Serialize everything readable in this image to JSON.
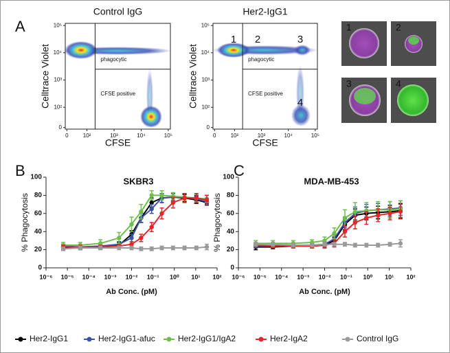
{
  "panel_labels": [
    "A",
    "B",
    "C"
  ],
  "flow_plots": [
    {
      "title": "Control IgG",
      "xlabel": "CFSE",
      "ylabel": "Celltrace Violet",
      "gate_labels": [
        "phagocytic",
        "CFSE positive"
      ],
      "xlim": [
        0,
        120000
      ],
      "ylim": [
        0,
        120000
      ],
      "gate_x": 200,
      "gate_y": 2500,
      "xticks": [
        0,
        {
          "value": 100,
          "label": "10²"
        },
        {
          "value": 1000,
          "label": "10³"
        },
        {
          "value": 10000,
          "label": "10⁴"
        },
        {
          "value": 100000,
          "label": "10⁵"
        }
      ],
      "yticks": [
        0,
        {
          "value": 100,
          "label": "10²"
        },
        {
          "value": 1000,
          "label": "10³"
        },
        {
          "value": 10000,
          "label": "10⁴"
        },
        {
          "value": 100000,
          "label": "10⁵"
        }
      ]
    },
    {
      "title": "Her2-IgG1",
      "xlabel": "CFSE",
      "ylabel": "Celltrace Violet",
      "gate_labels": [
        "phagocytic",
        "CFSE positive"
      ],
      "population_labels": [
        "1",
        "2",
        "3",
        "4"
      ],
      "xlim": [
        0,
        120000
      ],
      "ylim": [
        0,
        120000
      ],
      "gate_x": 200,
      "gate_y": 2500,
      "xticks": [
        0,
        {
          "value": 100,
          "label": "10²"
        },
        {
          "value": 1000,
          "label": "10³"
        },
        {
          "value": 10000,
          "label": "10⁴"
        },
        {
          "value": 100000,
          "label": "10⁵"
        }
      ],
      "yticks": [
        0,
        {
          "value": 100,
          "label": "10²"
        },
        {
          "value": 1000,
          "label": "10³"
        },
        {
          "value": 10000,
          "label": "10⁴"
        },
        {
          "value": 100000,
          "label": "10⁵"
        }
      ]
    }
  ],
  "image_labels": [
    "1",
    "2",
    "3",
    "4"
  ],
  "chart_data": [
    {
      "type": "line",
      "title": "SKBR3",
      "xlabel": "Ab Conc. (pM)",
      "ylabel": "% Phagocytosis",
      "xscale": "log",
      "xlim": [
        1e-06,
        100
      ],
      "ylim": [
        0,
        100
      ],
      "xticks": [
        {
          "value": 1e-06,
          "label": "10⁻⁶"
        },
        {
          "value": 1e-05,
          "label": "10⁻⁵"
        },
        {
          "value": 0.0001,
          "label": "10⁻⁴"
        },
        {
          "value": 0.001,
          "label": "10⁻³"
        },
        {
          "value": 0.01,
          "label": "10⁻²"
        },
        {
          "value": 0.1,
          "label": "10⁻¹"
        },
        {
          "value": 1,
          "label": "10⁰"
        },
        {
          "value": 10,
          "label": "10¹"
        },
        {
          "value": 100,
          "label": "10²"
        }
      ],
      "yticks": [
        0,
        20,
        40,
        60,
        80,
        100
      ],
      "x": [
        6.4e-06,
        4e-05,
        0.00035,
        0.0026,
        0.01,
        0.028,
        0.087,
        0.26,
        0.87,
        3,
        10.7,
        33
      ],
      "series": [
        {
          "name": "Her2-IgG1",
          "color": "#000000",
          "values": [
            22,
            22,
            23,
            25,
            37,
            55,
            72,
            77,
            78,
            77,
            75,
            72
          ],
          "errors": [
            2,
            2,
            2,
            3,
            4,
            5,
            5,
            5,
            4,
            4,
            4,
            3
          ]
        },
        {
          "name": "Her2-IgG1-afuc",
          "color": "#3b53a4",
          "values": [
            24,
            23,
            24,
            26,
            33,
            55,
            65,
            77,
            78,
            78,
            76,
            73
          ],
          "errors": [
            2,
            2,
            2,
            3,
            4,
            5,
            5,
            5,
            4,
            4,
            4,
            4
          ]
        },
        {
          "name": "Her2-IgG1/IgA2",
          "color": "#6cbf4a",
          "values": [
            25,
            25,
            27,
            33,
            48,
            62,
            80,
            80,
            79,
            78,
            77,
            76
          ],
          "errors": [
            3,
            3,
            4,
            6,
            8,
            8,
            5,
            5,
            4,
            4,
            4,
            4
          ]
        },
        {
          "name": "Her2-IgA2",
          "color": "#e2262a",
          "values": [
            23,
            23,
            23,
            24,
            26,
            33,
            45,
            60,
            72,
            77,
            77,
            75
          ],
          "errors": [
            2,
            2,
            2,
            2,
            3,
            4,
            5,
            6,
            6,
            5,
            5,
            5
          ]
        },
        {
          "name": "Control IgG",
          "color": "#9a9a9a",
          "values": [
            21,
            22,
            22,
            22,
            22,
            21,
            21,
            22,
            22,
            22,
            22,
            23
          ],
          "errors": [
            2,
            2,
            2,
            2,
            2,
            2,
            2,
            2,
            2,
            2,
            2,
            3
          ]
        }
      ]
    },
    {
      "type": "line",
      "title": "MDA-MB-453",
      "xlabel": "Ab Conc. (pM)",
      "ylabel": "% Phagocytosis",
      "xscale": "log",
      "xlim": [
        1e-06,
        100
      ],
      "ylim": [
        0,
        100
      ],
      "xticks": [
        {
          "value": 1e-06,
          "label": "10⁻⁶"
        },
        {
          "value": 1e-05,
          "label": "10⁻⁵"
        },
        {
          "value": 0.0001,
          "label": "10⁻⁴"
        },
        {
          "value": 0.001,
          "label": "10⁻³"
        },
        {
          "value": 0.01,
          "label": "10⁻²"
        },
        {
          "value": 0.1,
          "label": "10⁻¹"
        },
        {
          "value": 1,
          "label": "10⁰"
        },
        {
          "value": 10,
          "label": "10¹"
        },
        {
          "value": 100,
          "label": "10²"
        }
      ],
      "yticks": [
        0,
        20,
        40,
        60,
        80,
        100
      ],
      "x": [
        6.4e-06,
        4e-05,
        0.00035,
        0.0026,
        0.01,
        0.028,
        0.087,
        0.26,
        0.87,
        3,
        10.7,
        33
      ],
      "series": [
        {
          "name": "Her2-IgG1",
          "color": "#000000",
          "values": [
            23,
            23,
            24,
            24,
            25,
            30,
            48,
            58,
            60,
            61,
            62,
            63
          ],
          "errors": [
            3,
            2,
            2,
            2,
            3,
            4,
            6,
            7,
            7,
            7,
            7,
            8
          ]
        },
        {
          "name": "Her2-IgG1-afuc",
          "color": "#3b53a4",
          "values": [
            24,
            24,
            25,
            25,
            26,
            32,
            50,
            60,
            63,
            64,
            65,
            66
          ],
          "errors": [
            2,
            2,
            2,
            2,
            3,
            4,
            6,
            7,
            7,
            7,
            8,
            8
          ]
        },
        {
          "name": "Her2-IgG1/IgA2",
          "color": "#6cbf4a",
          "values": [
            27,
            27,
            27,
            28,
            30,
            38,
            55,
            62,
            63,
            64,
            64,
            65
          ],
          "errors": [
            3,
            3,
            3,
            3,
            4,
            6,
            9,
            10,
            9,
            9,
            9,
            9
          ]
        },
        {
          "name": "Her2-IgA2",
          "color": "#e2262a",
          "values": [
            25,
            24,
            24,
            24,
            25,
            27,
            40,
            50,
            55,
            58,
            60,
            62
          ],
          "errors": [
            2,
            2,
            2,
            2,
            3,
            4,
            6,
            7,
            7,
            7,
            7,
            8
          ]
        },
        {
          "name": "Control IgG",
          "color": "#9a9a9a",
          "values": [
            26,
            26,
            25,
            25,
            26,
            26,
            26,
            25,
            25,
            25,
            26,
            27
          ],
          "errors": [
            2,
            2,
            2,
            2,
            2,
            2,
            2,
            2,
            2,
            2,
            2,
            4
          ]
        }
      ]
    }
  ]
}
